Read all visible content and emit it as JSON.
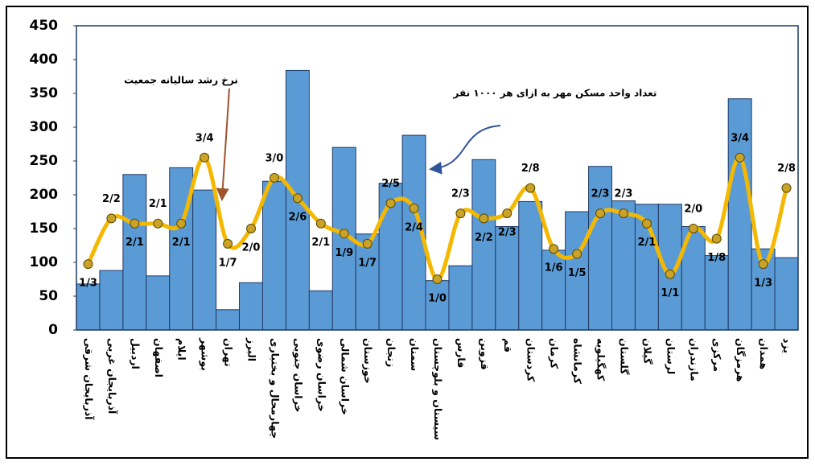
{
  "chart_data": {
    "type": "bar",
    "annotations": [
      "نرخ رشد سالیانه جمعیت",
      "تعداد واحد مسکن مهر به ازای هر ۱۰۰۰ نفر"
    ],
    "categories": [
      "آذربایجان شرقی",
      "آذربایجان غربی",
      "اردبیل",
      "اصفهان",
      "ایلام",
      "بوشهر",
      "تهران",
      "البرز",
      "چهارمحال و بختیاری",
      "خراسان جنوبی",
      "خراسان رضوی",
      "خراسان شمالی",
      "خوزستان",
      "زنجان",
      "سمنان",
      "سیستان و بلوچستان",
      "فارس",
      "قزوین",
      "قم",
      "کردستان",
      "کرمان",
      "کرمانشاه",
      "کهگیلویه",
      "گلستان",
      "گیلان",
      "لرستان",
      "مازندران",
      "مرکزی",
      "هرمزگان",
      "همدان",
      "یزد"
    ],
    "series": [
      {
        "type": "bar",
        "color": "#5b9bd5",
        "values": [
          68,
          88,
          230,
          80,
          240,
          207,
          30,
          70,
          220,
          384,
          58,
          270,
          142,
          217,
          288,
          73,
          95,
          252,
          153,
          190,
          118,
          175,
          242,
          191,
          186,
          186,
          153,
          110,
          342,
          120,
          107
        ]
      },
      {
        "type": "line",
        "axis": "y2",
        "color": "#f5b800",
        "values": [
          1.3,
          2.2,
          2.1,
          2.1,
          2.1,
          3.4,
          1.7,
          2.0,
          3.0,
          2.6,
          2.1,
          1.9,
          1.7,
          2.5,
          2.4,
          1.0,
          2.3,
          2.2,
          2.3,
          2.8,
          1.6,
          1.5,
          2.3,
          2.3,
          2.1,
          1.1,
          2.0,
          1.8,
          3.4,
          1.3,
          2.8
        ],
        "value_labels": [
          "1/3",
          "2/2",
          "2/1",
          "2/1",
          "2/1",
          "3/4",
          "1/7",
          "2/0",
          "3/0",
          "2/6",
          "2/1",
          "1/9",
          "1/7",
          "2/5",
          "2/4",
          "1/0",
          "2/3",
          "2/2",
          "2/3",
          "2/8",
          "1/6",
          "1/5",
          "2/3",
          "2/3",
          "2/1",
          "1/1",
          "2/0",
          "1/8",
          "3/4",
          "1/3",
          "2/8"
        ]
      }
    ],
    "ylim": [
      0,
      450
    ],
    "yticks": [
      0,
      50,
      100,
      150,
      200,
      250,
      300,
      350,
      400,
      450
    ],
    "y2lim": [
      0,
      6
    ]
  }
}
